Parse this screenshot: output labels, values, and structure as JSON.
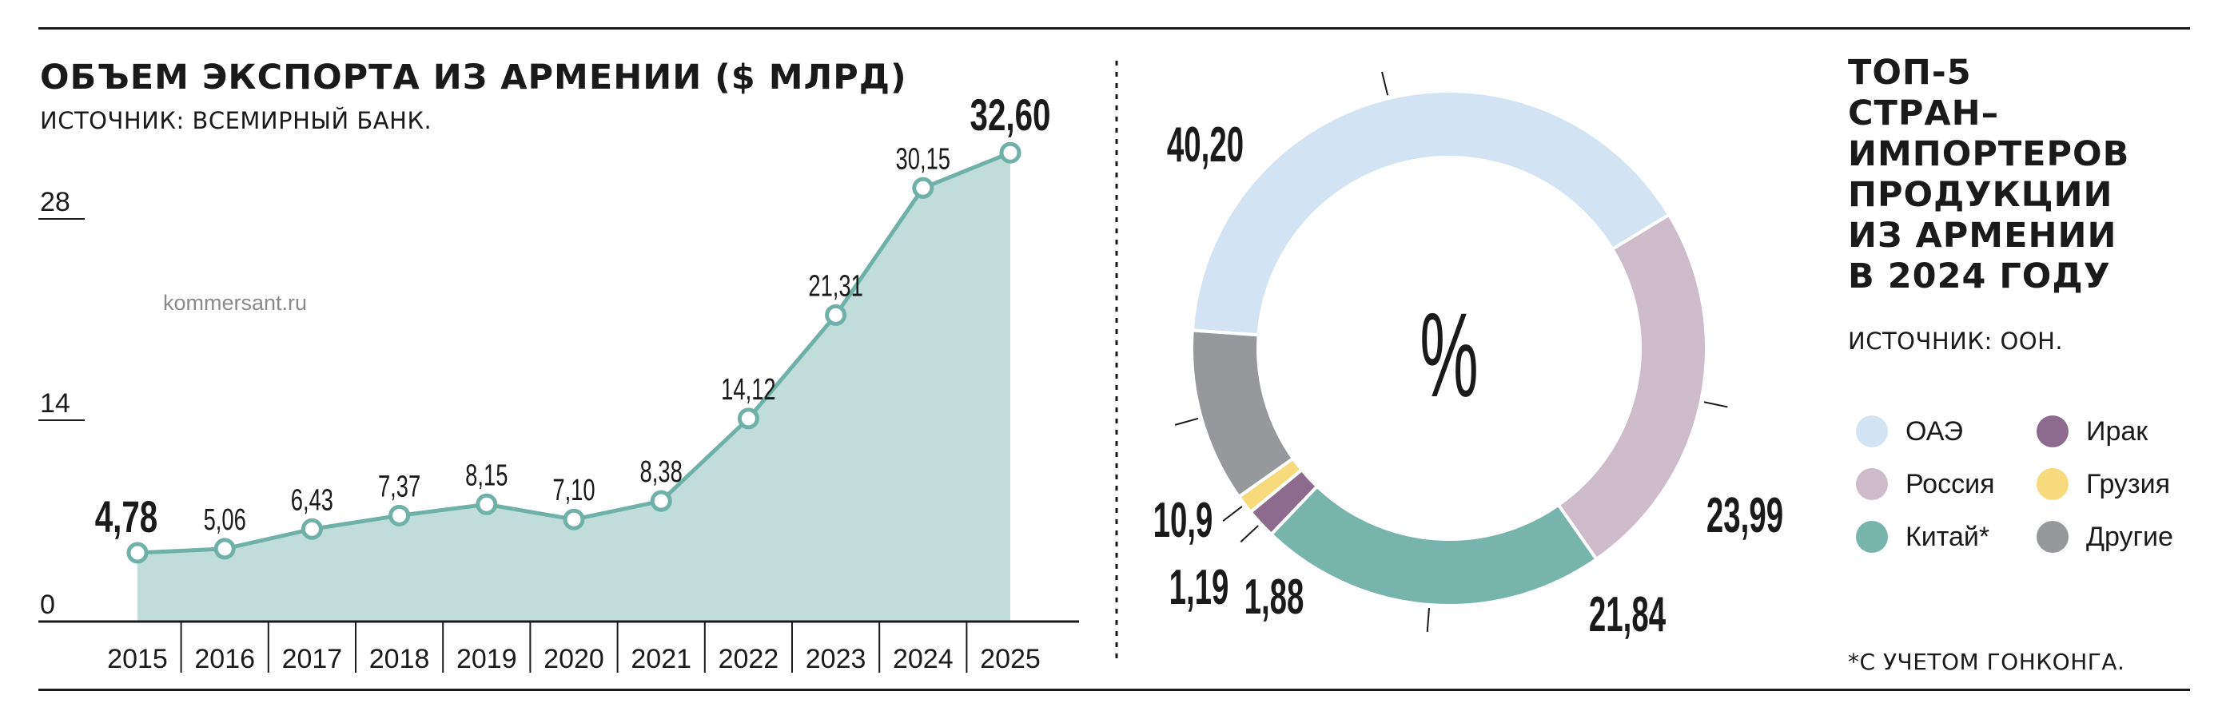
{
  "left_chart": {
    "title": "ОБЪЕМ ЭКСПОРТА ИЗ АРМЕНИИ ($ МЛРД)",
    "source": "ИСТОЧНИК: ВСЕМИРНЫЙ БАНК.",
    "watermark": "kommersant.ru"
  },
  "right_chart": {
    "title_lines": [
      "ТОП-5",
      "СТРАН–",
      "ИМПОРТЕРОВ",
      "ПРОДУКЦИИ",
      "ИЗ АРМЕНИИ",
      "В 2024 ГОДУ"
    ],
    "source": "ИСТОЧНИК: ООН.",
    "center_label": "%",
    "footnote": "*С УЧЕТОМ ГОНКОНГА."
  },
  "colors": {
    "line": "#6fb0a8",
    "area": "#c0ddda",
    "uae": "#d2e4f4",
    "russia": "#cfbccb",
    "china": "#76b4ac",
    "iraq": "#8c6b8e",
    "georgia": "#f7da7c",
    "other": "#97989c"
  },
  "chart_data": [
    {
      "type": "area",
      "title": "ОБЪЕМ ЭКСПОРТА ИЗ АРМЕНИИ ($ МЛРД)",
      "x": [
        "2015",
        "2016",
        "2017",
        "2018",
        "2019",
        "2020",
        "2021",
        "2022",
        "2023",
        "2024",
        "2025"
      ],
      "values": [
        4.78,
        5.06,
        6.43,
        7.37,
        8.15,
        7.1,
        8.38,
        14.12,
        21.31,
        30.15,
        32.6
      ],
      "value_labels": [
        "4,78",
        "5,06",
        "6,43",
        "7,37",
        "8,15",
        "7,10",
        "8,38",
        "14,12",
        "21,31",
        "30,15",
        "32,60"
      ],
      "yticks": [
        0,
        14,
        28
      ],
      "ylim": [
        0,
        33
      ],
      "grid": false
    },
    {
      "type": "pie",
      "title": "ТОП-5 СТРАН–ИМПОРТЕРОВ ПРОДУКЦИИ ИЗ АРМЕНИИ В 2024 ГОДУ",
      "unit": "%",
      "slices": [
        {
          "name": "ОАЭ",
          "value": 40.2,
          "label": "40,20",
          "color_key": "uae"
        },
        {
          "name": "Россия",
          "value": 23.99,
          "label": "23,99",
          "color_key": "russia"
        },
        {
          "name": "Китай*",
          "value": 21.84,
          "label": "21,84",
          "color_key": "china"
        },
        {
          "name": "Ирак",
          "value": 1.88,
          "label": "1,88",
          "color_key": "iraq"
        },
        {
          "name": "Грузия",
          "value": 1.19,
          "label": "1,19",
          "color_key": "georgia"
        },
        {
          "name": "Другие",
          "value": 10.9,
          "label": "10,9",
          "color_key": "other"
        }
      ],
      "legend": [
        {
          "name": "ОАЭ",
          "color_key": "uae"
        },
        {
          "name": "Ирак",
          "color_key": "iraq"
        },
        {
          "name": "Россия",
          "color_key": "russia"
        },
        {
          "name": "Грузия",
          "color_key": "georgia"
        },
        {
          "name": "Китай*",
          "color_key": "china"
        },
        {
          "name": "Другие",
          "color_key": "other"
        }
      ]
    }
  ]
}
